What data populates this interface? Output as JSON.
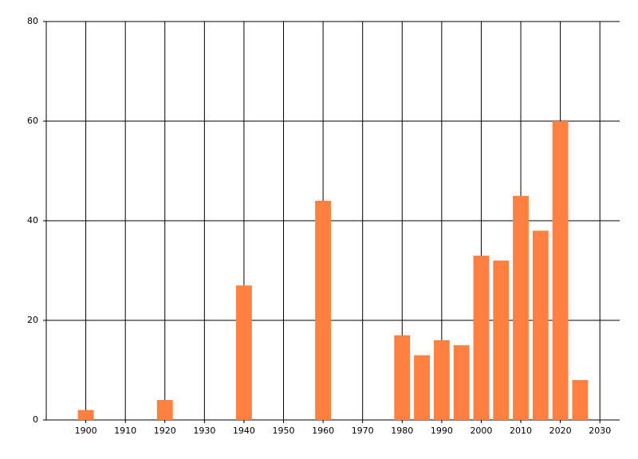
{
  "chart_data": {
    "type": "bar",
    "x": [
      1900,
      1920,
      1940,
      1960,
      1980,
      1985,
      1990,
      1995,
      2000,
      2005,
      2010,
      2015,
      2020,
      2025
    ],
    "values": [
      2,
      4,
      27,
      44,
      17,
      13,
      16,
      15,
      33,
      32,
      45,
      38,
      60,
      8
    ],
    "color": "#ff8040",
    "xlim": [
      1890,
      2035
    ],
    "xticks": [
      1900,
      1910,
      1920,
      1930,
      1940,
      1950,
      1960,
      1970,
      1980,
      1990,
      2000,
      2010,
      2020,
      2030
    ],
    "ylim": [
      0,
      80
    ],
    "yticks": [
      0,
      20,
      40,
      60,
      80
    ],
    "grid": true
  }
}
